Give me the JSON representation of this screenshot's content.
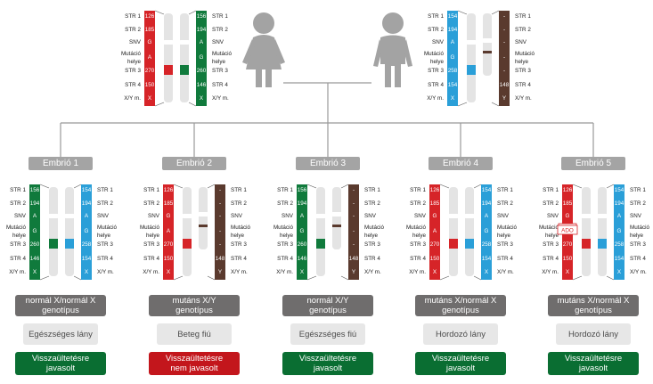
{
  "colors": {
    "red": "#d62428",
    "green": "#107a3c",
    "blue": "#2a9fd8",
    "brown": "#5a3a2e",
    "chromosome": "#e4e4e4",
    "line": "#999999",
    "person": "#a3a3a3",
    "embryo_label": "#a4a4a4",
    "genotype_box": "#6f6d6d",
    "status_box": "#e7e7e7",
    "recommended": "#0a6e32",
    "not_recommended": "#c3161c"
  },
  "icons": {
    "mother": "female-person-icon",
    "father": "male-person-icon"
  },
  "row_labels": [
    "STR 1",
    "STR 2",
    "SNV",
    "Mutáció\nhelye",
    "STR 3",
    "STR 4",
    "X/Y m."
  ],
  "haplotypes": {
    "mother_red": {
      "color": "red",
      "values": [
        "126",
        "185",
        "G",
        "A",
        "270",
        "150",
        "X"
      ]
    },
    "mother_green": {
      "color": "green",
      "values": [
        "156",
        "194",
        "A",
        "G",
        "260",
        "146",
        "X"
      ]
    },
    "father_blue": {
      "color": "blue",
      "values": [
        "154",
        "194",
        "A",
        "G",
        "258",
        "154",
        "X"
      ]
    },
    "father_brown": {
      "color": "brown",
      "values": [
        "-",
        "-",
        "-",
        "-",
        "-",
        "148",
        "Y"
      ]
    }
  },
  "parents": {
    "mother": {
      "left": "mother_red",
      "right": "mother_green"
    },
    "father": {
      "left": "father_blue",
      "right": "father_brown"
    }
  },
  "embryos": [
    {
      "label": "Embrió 1",
      "left": "mother_green",
      "right": "father_blue",
      "adi": false,
      "genotype": "normál X/normál X\ngenotípus",
      "status": "Egészséges lány",
      "recommendation": "Visszaültetésre\njavasolt",
      "recommended": true
    },
    {
      "label": "Embrió 2",
      "left": "mother_red",
      "right": "father_brown",
      "adi": false,
      "genotype": "mutáns X/Y\ngenotípus",
      "status": "Beteg fiú",
      "recommendation": "Visszaültetésre\nnem javasolt",
      "recommended": false
    },
    {
      "label": "Embrió 3",
      "left": "mother_green",
      "right": "father_brown",
      "adi": false,
      "genotype": "normál X/Y\ngenotípus",
      "status": "Egészséges fiú",
      "recommendation": "Visszaültetésre\njavasolt",
      "recommended": true
    },
    {
      "label": "Embrió 4",
      "left": "mother_red",
      "right": "father_blue",
      "adi": false,
      "genotype": "mutáns X/normál X\ngenotípus",
      "status": "Hordozó lány",
      "recommendation": "Visszaültetésre\njavasolt",
      "recommended": true
    },
    {
      "label": "Embrió 5",
      "left": "mother_red",
      "right": "father_blue",
      "adi": true,
      "genotype": "mutáns X/normál X\ngenotípus",
      "status": "Hordozó lány",
      "recommendation": "Visszaültetésre\njavasolt",
      "recommended": true
    }
  ],
  "ado_label": "ADO"
}
